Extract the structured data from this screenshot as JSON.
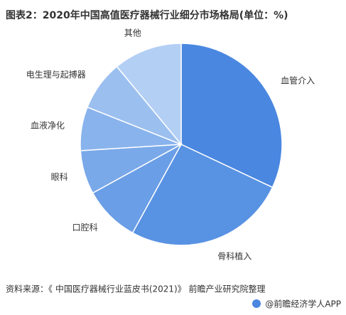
{
  "chart_data": {
    "type": "pie",
    "title": "图表2：2020年中国高值医疗器械行业细分市场格局(单位：%)",
    "categories": [
      "血管介入",
      "骨科植入",
      "口腔科",
      "眼科",
      "血液净化",
      "电生理与起搏器",
      "其他"
    ],
    "values": [
      32,
      26,
      9,
      7,
      7,
      8,
      11
    ],
    "colors": [
      "#4a87e0",
      "#5892e3",
      "#6a9ee6",
      "#7aa9e9",
      "#89b3ec",
      "#9bbfef",
      "#b3cff4"
    ],
    "source": "资料来源：《 中国医疗器械行业蓝皮书(2021)》 前瞻产业研究院整理",
    "footer": "@前瞻经济学人APP"
  }
}
